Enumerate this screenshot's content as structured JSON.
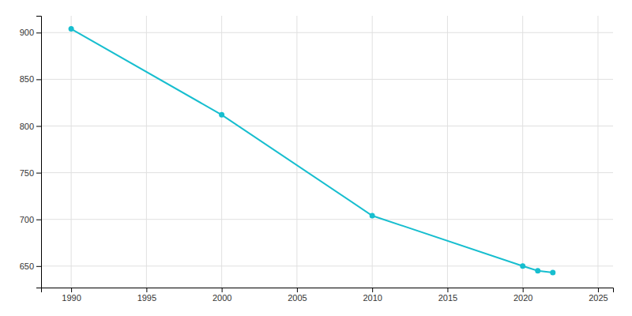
{
  "chart_data": {
    "type": "line",
    "x": [
      1990,
      2000,
      2010,
      2020,
      2021,
      2022
    ],
    "values": [
      904,
      812,
      704,
      650,
      645,
      643
    ],
    "color": "#17BECF",
    "marker": "circle",
    "xlim": [
      1988,
      2026
    ],
    "ylim": [
      627,
      918
    ],
    "xticks": [
      1990,
      1995,
      2000,
      2005,
      2010,
      2015,
      2020,
      2025
    ],
    "yticks": [
      650,
      700,
      750,
      800,
      850,
      900
    ],
    "grid": true
  }
}
